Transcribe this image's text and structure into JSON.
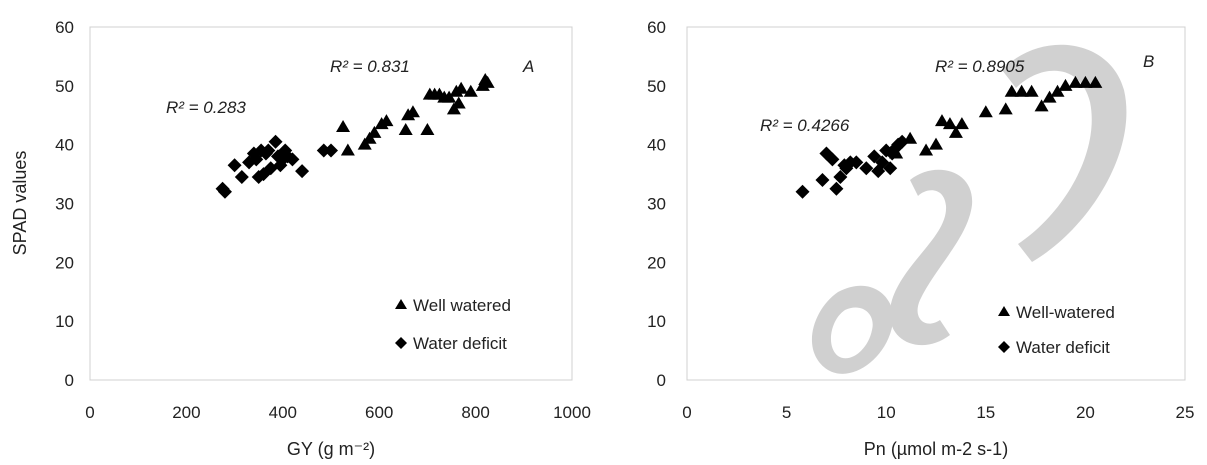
{
  "chart_data": [
    {
      "type": "scatter",
      "panel_label": "A",
      "xlabel": "GY (g m⁻²)",
      "ylabel": "SPAD values",
      "xlim": [
        0,
        1000
      ],
      "ylim": [
        0,
        60
      ],
      "xticks": [
        "0",
        "200",
        "400",
        "600",
        "800",
        "1000"
      ],
      "yticks": [
        "0",
        "10",
        "20",
        "30",
        "40",
        "50",
        "60"
      ],
      "grid": false,
      "legend_position": "bottom-right",
      "series": [
        {
          "name": "Well watered",
          "marker": "triangle",
          "color": "#000000",
          "r2_label": "R² = 0.831",
          "points": [
            [
              525,
              43
            ],
            [
              535,
              39
            ],
            [
              570,
              40
            ],
            [
              580,
              41
            ],
            [
              590,
              42
            ],
            [
              605,
              43.5
            ],
            [
              615,
              44
            ],
            [
              655,
              42.5
            ],
            [
              660,
              45
            ],
            [
              670,
              45.5
            ],
            [
              700,
              42.5
            ],
            [
              705,
              48.5
            ],
            [
              715,
              48.5
            ],
            [
              725,
              48.5
            ],
            [
              735,
              48
            ],
            [
              745,
              48
            ],
            [
              755,
              46
            ],
            [
              760,
              49
            ],
            [
              765,
              47
            ],
            [
              770,
              49.5
            ],
            [
              790,
              49
            ],
            [
              815,
              50
            ],
            [
              820,
              51
            ],
            [
              825,
              50.5
            ]
          ]
        },
        {
          "name": "Water deficit",
          "marker": "diamond",
          "color": "#000000",
          "r2_label": "R² = 0.283",
          "points": [
            [
              275,
              32.5
            ],
            [
              280,
              32
            ],
            [
              300,
              36.5
            ],
            [
              315,
              34.5
            ],
            [
              330,
              37
            ],
            [
              340,
              38.5
            ],
            [
              345,
              37.5
            ],
            [
              350,
              34.5
            ],
            [
              355,
              39
            ],
            [
              360,
              35
            ],
            [
              365,
              38.5
            ],
            [
              370,
              39
            ],
            [
              375,
              36
            ],
            [
              385,
              40.5
            ],
            [
              390,
              38
            ],
            [
              395,
              36.5
            ],
            [
              400,
              37.5
            ],
            [
              405,
              39
            ],
            [
              410,
              38
            ],
            [
              420,
              37.5
            ],
            [
              440,
              35.5
            ],
            [
              485,
              39
            ],
            [
              500,
              39
            ]
          ]
        }
      ]
    },
    {
      "type": "scatter",
      "panel_label": "B",
      "xlabel": "Pn (µmol m-2 s-1)",
      "ylabel": "",
      "xlim": [
        0,
        25
      ],
      "ylim": [
        0,
        60
      ],
      "xticks": [
        "0",
        "5",
        "10",
        "15",
        "20",
        "25"
      ],
      "yticks": [
        "0",
        "10",
        "20",
        "30",
        "40",
        "50",
        "60"
      ],
      "grid": false,
      "legend_position": "bottom-right",
      "series": [
        {
          "name": "Well-watered",
          "marker": "triangle",
          "color": "#000000",
          "r2_label": "R² = 0.8905",
          "points": [
            [
              10.5,
              38.5
            ],
            [
              11.2,
              41
            ],
            [
              12,
              39
            ],
            [
              12.5,
              40
            ],
            [
              12.8,
              44
            ],
            [
              13.2,
              43.5
            ],
            [
              13.5,
              42
            ],
            [
              13.8,
              43.5
            ],
            [
              15,
              45.5
            ],
            [
              16,
              46
            ],
            [
              16.3,
              49
            ],
            [
              16.8,
              49
            ],
            [
              17.3,
              49
            ],
            [
              17.8,
              46.5
            ],
            [
              18.2,
              48
            ],
            [
              18.6,
              49
            ],
            [
              19,
              50
            ],
            [
              19.5,
              50.5
            ],
            [
              20,
              50.5
            ],
            [
              20.5,
              50.5
            ]
          ]
        },
        {
          "name": "Water deficit",
          "marker": "diamond",
          "color": "#000000",
          "r2_label": "R² = 0.4266",
          "points": [
            [
              5.8,
              32
            ],
            [
              6.8,
              34
            ],
            [
              7,
              38.5
            ],
            [
              7.3,
              37.5
            ],
            [
              7.5,
              32.5
            ],
            [
              7.7,
              34.5
            ],
            [
              7.9,
              36.5
            ],
            [
              8,
              36
            ],
            [
              8.2,
              37
            ],
            [
              8.5,
              37
            ],
            [
              9,
              36
            ],
            [
              9.4,
              38
            ],
            [
              9.6,
              35.5
            ],
            [
              9.8,
              37
            ],
            [
              10,
              39
            ],
            [
              10.2,
              36
            ],
            [
              10.3,
              38.5
            ],
            [
              10.5,
              39.5
            ],
            [
              10.6,
              40
            ],
            [
              10.8,
              40.5
            ]
          ]
        }
      ]
    }
  ]
}
